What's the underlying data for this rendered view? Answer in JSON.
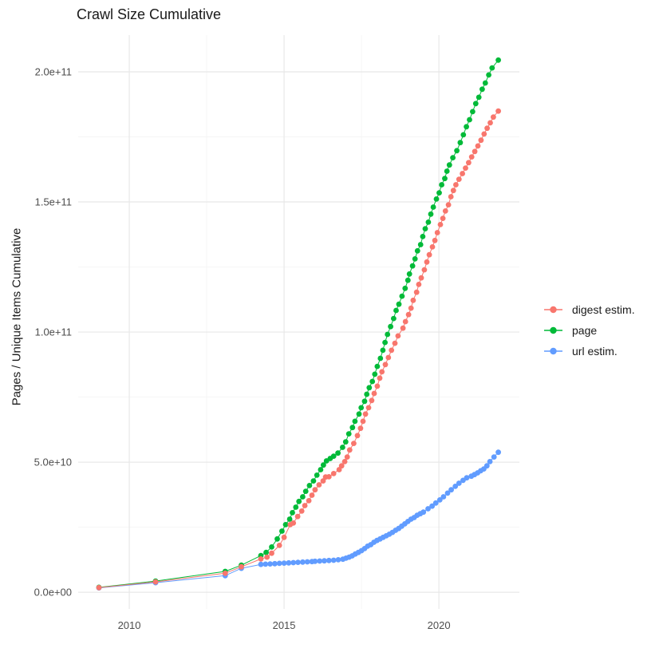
{
  "chart_data": {
    "type": "line",
    "title": "Crawl Size Cumulative",
    "xlabel": "",
    "ylabel": "Pages / Unique Items Cumulative",
    "legend_position": "right",
    "grid": true,
    "value_unit": "1e9 pages (values below are billions)",
    "xlim": [
      2008.35,
      2022.6
    ],
    "ylim_e9": [
      -6.4,
      214.1
    ],
    "x_ticks": [
      {
        "v": 2010,
        "label": "2010"
      },
      {
        "v": 2015,
        "label": "2015"
      },
      {
        "v": 2020,
        "label": "2020"
      }
    ],
    "x_minor": [
      2012.5,
      2017.5
    ],
    "y_ticks": [
      {
        "v": 0,
        "label": "0.0e+00"
      },
      {
        "v": 50,
        "label": "5.0e+10"
      },
      {
        "v": 100,
        "label": "1.0e+11"
      },
      {
        "v": 150,
        "label": "1.5e+11"
      },
      {
        "v": 200,
        "label": "2.0e+11"
      }
    ],
    "y_minor": [
      25,
      75,
      125,
      175
    ],
    "colors": {
      "digest_estim": "#F8766D",
      "page": "#00BA38",
      "url_estim": "#619CFF",
      "grid_major": "#e8e8e8",
      "grid_minor": "#f4f4f4",
      "axis_text": "#4d4d4d",
      "title_text": "#1a1a1a"
    },
    "draw_order": [
      1,
      2,
      0
    ],
    "series": [
      {
        "name": "digest estim.",
        "color": "#F8766D",
        "points": [
          [
            2009.02,
            1.8
          ],
          [
            2010.85,
            4.0
          ],
          [
            2013.1,
            7.3
          ],
          [
            2013.62,
            9.8
          ],
          [
            2014.25,
            12.8
          ],
          [
            2014.45,
            13.5
          ],
          [
            2014.6,
            15.0
          ],
          [
            2014.85,
            18.0
          ],
          [
            2015.0,
            21.1
          ],
          [
            2015.2,
            26.0
          ],
          [
            2015.3,
            26.6
          ],
          [
            2015.44,
            29.1
          ],
          [
            2015.57,
            31.2
          ],
          [
            2015.67,
            33.3
          ],
          [
            2015.8,
            35.2
          ],
          [
            2015.9,
            37.3
          ],
          [
            2016.0,
            39.4
          ],
          [
            2016.13,
            41.3
          ],
          [
            2016.26,
            42.8
          ],
          [
            2016.34,
            44.3
          ],
          [
            2016.45,
            44.4
          ],
          [
            2016.6,
            45.6
          ],
          [
            2016.78,
            47.1
          ],
          [
            2016.86,
            48.6
          ],
          [
            2016.96,
            50.2
          ],
          [
            2017.04,
            52.0
          ],
          [
            2017.12,
            54.7
          ],
          [
            2017.25,
            57.2
          ],
          [
            2017.37,
            60.2
          ],
          [
            2017.47,
            63.0
          ],
          [
            2017.55,
            65.7
          ],
          [
            2017.63,
            68.5
          ],
          [
            2017.73,
            70.9
          ],
          [
            2017.83,
            73.7
          ],
          [
            2017.91,
            76.4
          ],
          [
            2018.01,
            79.2
          ],
          [
            2018.09,
            82.3
          ],
          [
            2018.16,
            84.7
          ],
          [
            2018.27,
            87.5
          ],
          [
            2018.37,
            90.2
          ],
          [
            2018.47,
            93.0
          ],
          [
            2018.58,
            95.7
          ],
          [
            2018.68,
            98.5
          ],
          [
            2018.84,
            101.5
          ],
          [
            2018.92,
            104.0
          ],
          [
            2019.02,
            106.7
          ],
          [
            2019.1,
            109.2
          ],
          [
            2019.17,
            112.2
          ],
          [
            2019.28,
            115.3
          ],
          [
            2019.35,
            118.3
          ],
          [
            2019.43,
            120.8
          ],
          [
            2019.53,
            123.9
          ],
          [
            2019.61,
            126.9
          ],
          [
            2019.69,
            129.7
          ],
          [
            2019.79,
            132.7
          ],
          [
            2019.87,
            135.2
          ],
          [
            2019.95,
            138.2
          ],
          [
            2020.05,
            141.3
          ],
          [
            2020.13,
            143.7
          ],
          [
            2020.21,
            146.5
          ],
          [
            2020.31,
            148.9
          ],
          [
            2020.39,
            152.0
          ],
          [
            2020.47,
            154.4
          ],
          [
            2020.55,
            156.6
          ],
          [
            2020.65,
            158.7
          ],
          [
            2020.76,
            160.9
          ],
          [
            2020.86,
            163.0
          ],
          [
            2020.96,
            165.1
          ],
          [
            2021.06,
            167.3
          ],
          [
            2021.16,
            169.4
          ],
          [
            2021.26,
            171.5
          ],
          [
            2021.36,
            173.7
          ],
          [
            2021.46,
            176.1
          ],
          [
            2021.56,
            178.3
          ],
          [
            2021.66,
            180.4
          ],
          [
            2021.76,
            182.6
          ],
          [
            2021.92,
            184.9
          ]
        ]
      },
      {
        "name": "page",
        "color": "#00BA38",
        "points": [
          [
            2009.02,
            1.9
          ],
          [
            2010.85,
            4.3
          ],
          [
            2013.1,
            8.0
          ],
          [
            2013.62,
            10.4
          ],
          [
            2014.25,
            14.1
          ],
          [
            2014.42,
            15.3
          ],
          [
            2014.6,
            17.4
          ],
          [
            2014.78,
            20.5
          ],
          [
            2014.93,
            23.5
          ],
          [
            2015.05,
            26.0
          ],
          [
            2015.18,
            28.1
          ],
          [
            2015.27,
            30.6
          ],
          [
            2015.38,
            32.7
          ],
          [
            2015.48,
            34.9
          ],
          [
            2015.6,
            36.7
          ],
          [
            2015.7,
            38.8
          ],
          [
            2015.82,
            41.0
          ],
          [
            2015.95,
            42.8
          ],
          [
            2016.06,
            45.0
          ],
          [
            2016.18,
            47.1
          ],
          [
            2016.27,
            48.9
          ],
          [
            2016.37,
            50.5
          ],
          [
            2016.49,
            51.4
          ],
          [
            2016.6,
            52.3
          ],
          [
            2016.74,
            53.5
          ],
          [
            2016.89,
            55.7
          ],
          [
            2016.99,
            57.8
          ],
          [
            2017.09,
            60.9
          ],
          [
            2017.21,
            63.3
          ],
          [
            2017.29,
            65.7
          ],
          [
            2017.42,
            68.5
          ],
          [
            2017.49,
            70.9
          ],
          [
            2017.6,
            73.4
          ],
          [
            2017.67,
            76.1
          ],
          [
            2017.75,
            78.6
          ],
          [
            2017.85,
            81.0
          ],
          [
            2017.93,
            83.8
          ],
          [
            2018.01,
            86.8
          ],
          [
            2018.11,
            89.9
          ],
          [
            2018.19,
            93.0
          ],
          [
            2018.26,
            96.0
          ],
          [
            2018.34,
            99.1
          ],
          [
            2018.44,
            102.1
          ],
          [
            2018.54,
            105.2
          ],
          [
            2018.62,
            108.3
          ],
          [
            2018.71,
            110.7
          ],
          [
            2018.81,
            113.8
          ],
          [
            2018.91,
            116.8
          ],
          [
            2019.0,
            119.9
          ],
          [
            2019.05,
            122.3
          ],
          [
            2019.15,
            125.4
          ],
          [
            2019.23,
            128.1
          ],
          [
            2019.31,
            131.2
          ],
          [
            2019.41,
            133.6
          ],
          [
            2019.48,
            136.7
          ],
          [
            2019.56,
            139.7
          ],
          [
            2019.66,
            142.2
          ],
          [
            2019.74,
            145.3
          ],
          [
            2019.82,
            148.0
          ],
          [
            2019.92,
            151.1
          ],
          [
            2020.01,
            153.5
          ],
          [
            2020.09,
            156.6
          ],
          [
            2020.19,
            159.0
          ],
          [
            2020.26,
            161.8
          ],
          [
            2020.34,
            164.2
          ],
          [
            2020.45,
            167.0
          ],
          [
            2020.58,
            169.7
          ],
          [
            2020.69,
            172.8
          ],
          [
            2020.79,
            175.8
          ],
          [
            2020.89,
            178.9
          ],
          [
            2020.99,
            181.6
          ],
          [
            2021.09,
            184.7
          ],
          [
            2021.19,
            187.8
          ],
          [
            2021.29,
            190.2
          ],
          [
            2021.4,
            193.3
          ],
          [
            2021.5,
            195.7
          ],
          [
            2021.61,
            198.8
          ],
          [
            2021.72,
            201.5
          ],
          [
            2021.92,
            204.5
          ]
        ]
      },
      {
        "name": "url estim.",
        "color": "#619CFF",
        "points": [
          [
            2009.02,
            1.7
          ],
          [
            2010.85,
            3.7
          ],
          [
            2013.1,
            6.4
          ],
          [
            2013.62,
            9.2
          ],
          [
            2014.25,
            10.7
          ],
          [
            2014.4,
            10.8
          ],
          [
            2014.55,
            10.9
          ],
          [
            2014.7,
            11.0
          ],
          [
            2014.85,
            11.1
          ],
          [
            2015.0,
            11.2
          ],
          [
            2015.15,
            11.3
          ],
          [
            2015.3,
            11.4
          ],
          [
            2015.45,
            11.5
          ],
          [
            2015.6,
            11.6
          ],
          [
            2015.75,
            11.7
          ],
          [
            2015.9,
            11.8
          ],
          [
            2016.0,
            11.9
          ],
          [
            2016.15,
            12.0
          ],
          [
            2016.3,
            12.1
          ],
          [
            2016.45,
            12.2
          ],
          [
            2016.6,
            12.3
          ],
          [
            2016.75,
            12.5
          ],
          [
            2016.9,
            12.7
          ],
          [
            2017.0,
            13.1
          ],
          [
            2017.1,
            13.5
          ],
          [
            2017.2,
            14.0
          ],
          [
            2017.3,
            14.7
          ],
          [
            2017.4,
            15.3
          ],
          [
            2017.5,
            16.0
          ],
          [
            2017.6,
            16.8
          ],
          [
            2017.7,
            17.7
          ],
          [
            2017.8,
            18.3
          ],
          [
            2017.9,
            19.2
          ],
          [
            2018.0,
            19.9
          ],
          [
            2018.1,
            20.5
          ],
          [
            2018.2,
            21.1
          ],
          [
            2018.3,
            21.7
          ],
          [
            2018.4,
            22.3
          ],
          [
            2018.5,
            23.0
          ],
          [
            2018.6,
            23.8
          ],
          [
            2018.7,
            24.5
          ],
          [
            2018.8,
            25.4
          ],
          [
            2018.9,
            26.3
          ],
          [
            2019.0,
            27.2
          ],
          [
            2019.1,
            28.1
          ],
          [
            2019.2,
            28.7
          ],
          [
            2019.3,
            29.6
          ],
          [
            2019.4,
            30.2
          ],
          [
            2019.5,
            30.8
          ],
          [
            2019.65,
            32.1
          ],
          [
            2019.78,
            33.1
          ],
          [
            2019.9,
            34.3
          ],
          [
            2020.03,
            35.5
          ],
          [
            2020.15,
            36.7
          ],
          [
            2020.28,
            38.1
          ],
          [
            2020.4,
            39.4
          ],
          [
            2020.53,
            40.7
          ],
          [
            2020.65,
            41.9
          ],
          [
            2020.78,
            43.0
          ],
          [
            2020.9,
            44.0
          ],
          [
            2021.05,
            44.6
          ],
          [
            2021.15,
            45.2
          ],
          [
            2021.25,
            45.9
          ],
          [
            2021.35,
            46.7
          ],
          [
            2021.45,
            47.4
          ],
          [
            2021.55,
            48.6
          ],
          [
            2021.65,
            50.2
          ],
          [
            2021.78,
            52.0
          ],
          [
            2021.92,
            53.8
          ]
        ]
      }
    ],
    "legend": {
      "items": [
        {
          "label": "digest estim.",
          "color": "#F8766D"
        },
        {
          "label": "page",
          "color": "#00BA38"
        },
        {
          "label": "url estim.",
          "color": "#619CFF"
        }
      ]
    }
  }
}
